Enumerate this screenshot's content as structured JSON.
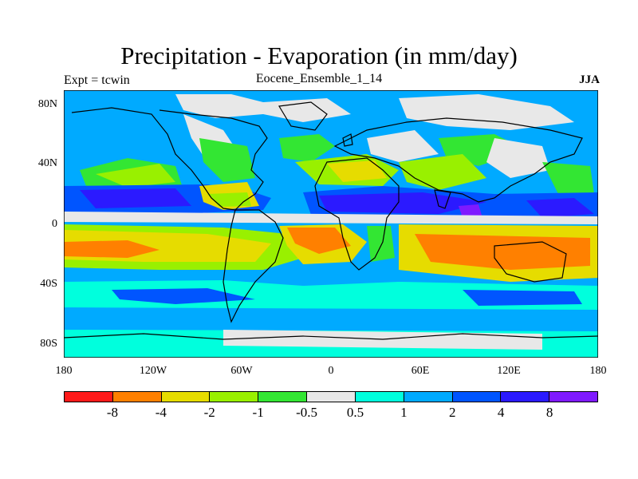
{
  "title": "Precipitation - Evaporation (in mm/day)",
  "left_label": "Expt = tcwin",
  "center_label": "Eocene_Ensemble_1_14",
  "right_label": "JJA",
  "lat_ticks": [
    "80N",
    "40N",
    "0",
    "40S",
    "80S"
  ],
  "lon_ticks": [
    "180",
    "120W",
    "60W",
    "0",
    "60E",
    "120E",
    "180"
  ],
  "colorbar": {
    "colors": [
      "#ff1a1a",
      "#ff8000",
      "#e6dc00",
      "#99f000",
      "#33e633",
      "#e8e8e8",
      "#00ffdd",
      "#00aaff",
      "#0055ff",
      "#2b1aff",
      "#7f1aff"
    ],
    "labels": [
      "-8",
      "-4",
      "-2",
      "-1",
      "-0.5",
      "0.5",
      "1",
      "2",
      "4",
      "8"
    ]
  }
}
